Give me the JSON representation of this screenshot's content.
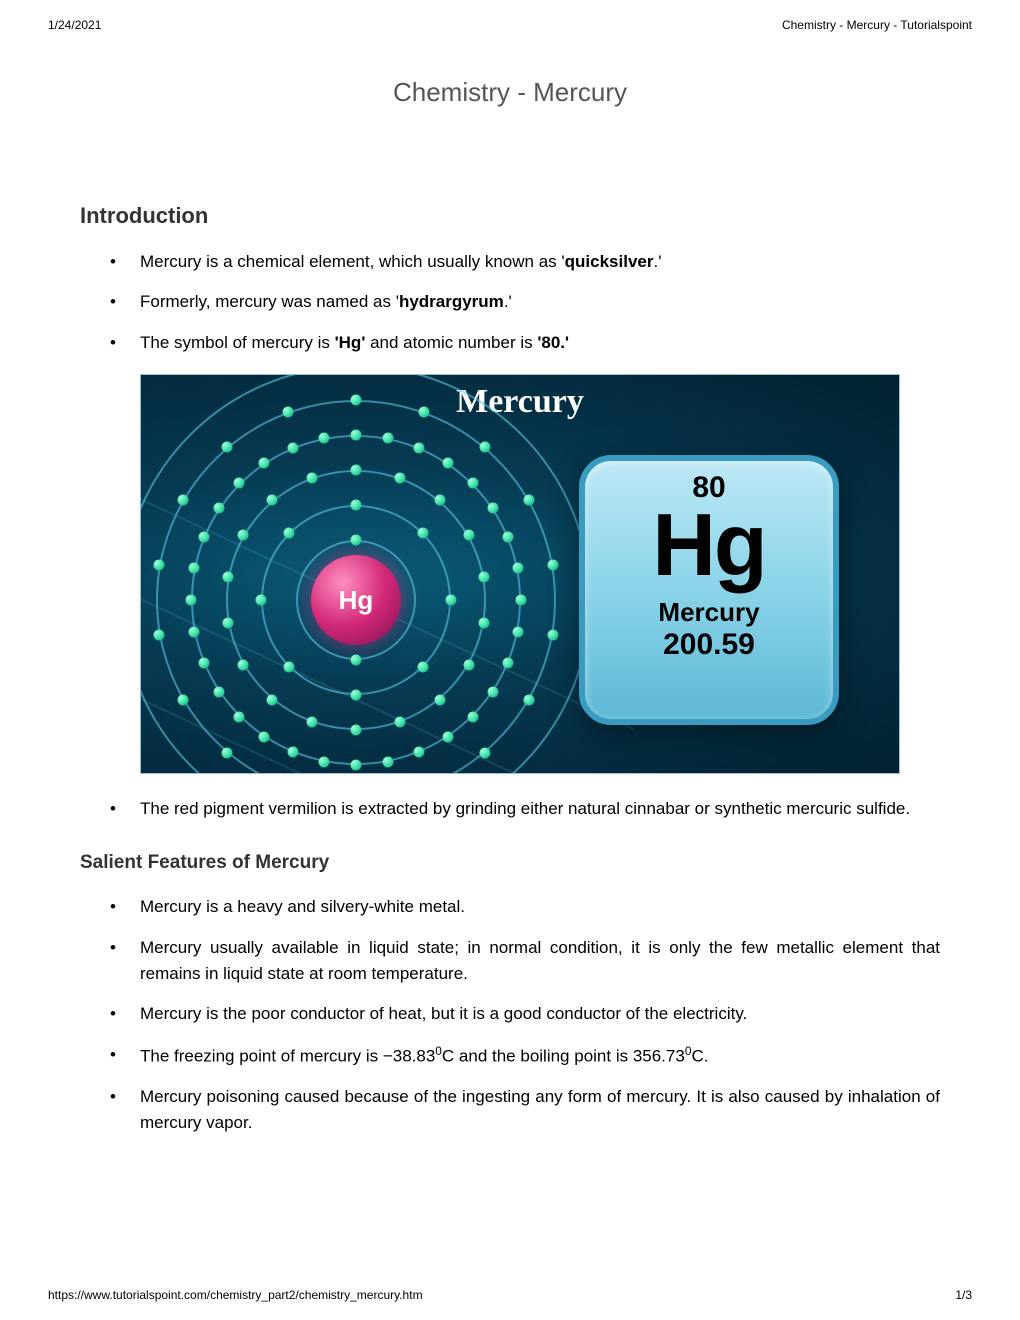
{
  "header": {
    "date": "1/24/2021",
    "doc_title": "Chemistry - Mercury - Tutorialspoint"
  },
  "title": "Chemistry - Mercury",
  "sections": {
    "intro": {
      "heading": "Introduction",
      "items": [
        {
          "pre": "Mercury is a chemical element, which usually known as '",
          "bold": "quicksilver",
          "post": ".'"
        },
        {
          "pre": "Formerly, mercury was named as '",
          "bold": "hydrargyrum",
          "post": ".'"
        },
        {
          "pre": "The symbol of mercury is ",
          "bold": "'Hg'",
          "mid": " and atomic number is ",
          "bold2": "'80.'",
          "post": ""
        }
      ],
      "after_figure": "The red pigment vermilion is extracted by grinding either natural cinnabar or synthetic mercuric sulfide."
    },
    "features": {
      "heading": "Salient Features of Mercury",
      "items": [
        "Mercury is a heavy and silvery-white metal.",
        "Mercury usually available in liquid state; in normal condition, it is only the few metallic element that remains in liquid state at room temperature.",
        "Mercury is the poor conductor of heat, but it is a good conductor of the electricity.",
        "__FREEZING__",
        "Mercury poisoning caused because of the ingesting any form of mercury. It is also caused by inhalation of mercury vapor."
      ],
      "freezing": {
        "pre": "The freezing point of mercury is −38.83",
        "sup1": "0",
        "mid": "C and the boiling point is 356.73",
        "sup2": "0",
        "post": "C."
      }
    }
  },
  "figure": {
    "title": "Mercury",
    "nucleus_label": "Hg",
    "tile": {
      "atomic_number": "80",
      "symbol": "Hg",
      "name": "Mercury",
      "mass": "200.59"
    },
    "orbit_radii": [
      60,
      95,
      130,
      165,
      200,
      235
    ],
    "electron_counts": [
      2,
      8,
      18,
      32,
      18,
      2
    ],
    "colors": {
      "background_inner": "#0a5d7a",
      "background_outer": "#022030",
      "orbit": "rgba(90,200,230,0.6)",
      "electron": "#2ed9a0",
      "nucleus": "#d4297a",
      "tile_bg_top": "#bce8f5",
      "tile_bg_bottom": "#5db8d6",
      "tile_border": "#3a9bc0",
      "title_color": "#ffffff"
    }
  },
  "footer": {
    "url": "https://www.tutorialspoint.com/chemistry_part2/chemistry_mercury.htm",
    "page": "1/3"
  }
}
